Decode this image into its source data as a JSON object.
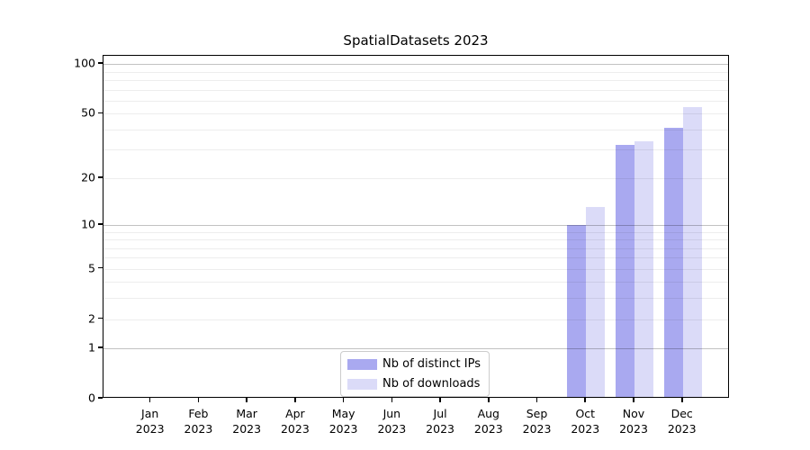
{
  "title": "SpatialDatasets 2023",
  "chart_data": {
    "type": "bar",
    "title": "SpatialDatasets 2023",
    "categories": [
      "Jan",
      "Feb",
      "Mar",
      "Apr",
      "May",
      "Jun",
      "Jul",
      "Aug",
      "Sep",
      "Oct",
      "Nov",
      "Dec"
    ],
    "category_year": "2023",
    "series": [
      {
        "name": "Nb of distinct IPs",
        "color": "#a9a9f0",
        "values": [
          0,
          0,
          0,
          0,
          0,
          0,
          0,
          0,
          0,
          10,
          32,
          41
        ]
      },
      {
        "name": "Nb of downloads",
        "color": "#dbdbf8",
        "values": [
          0,
          0,
          0,
          0,
          0,
          0,
          0,
          0,
          0,
          13,
          34,
          55
        ]
      }
    ],
    "xlabel": "",
    "ylabel": "",
    "yscale": "log1p",
    "yticks": [
      0,
      1,
      2,
      5,
      10,
      20,
      50,
      100
    ],
    "ylim": [
      0,
      112
    ],
    "grid": "horizontal",
    "legend_position": "lower center"
  }
}
